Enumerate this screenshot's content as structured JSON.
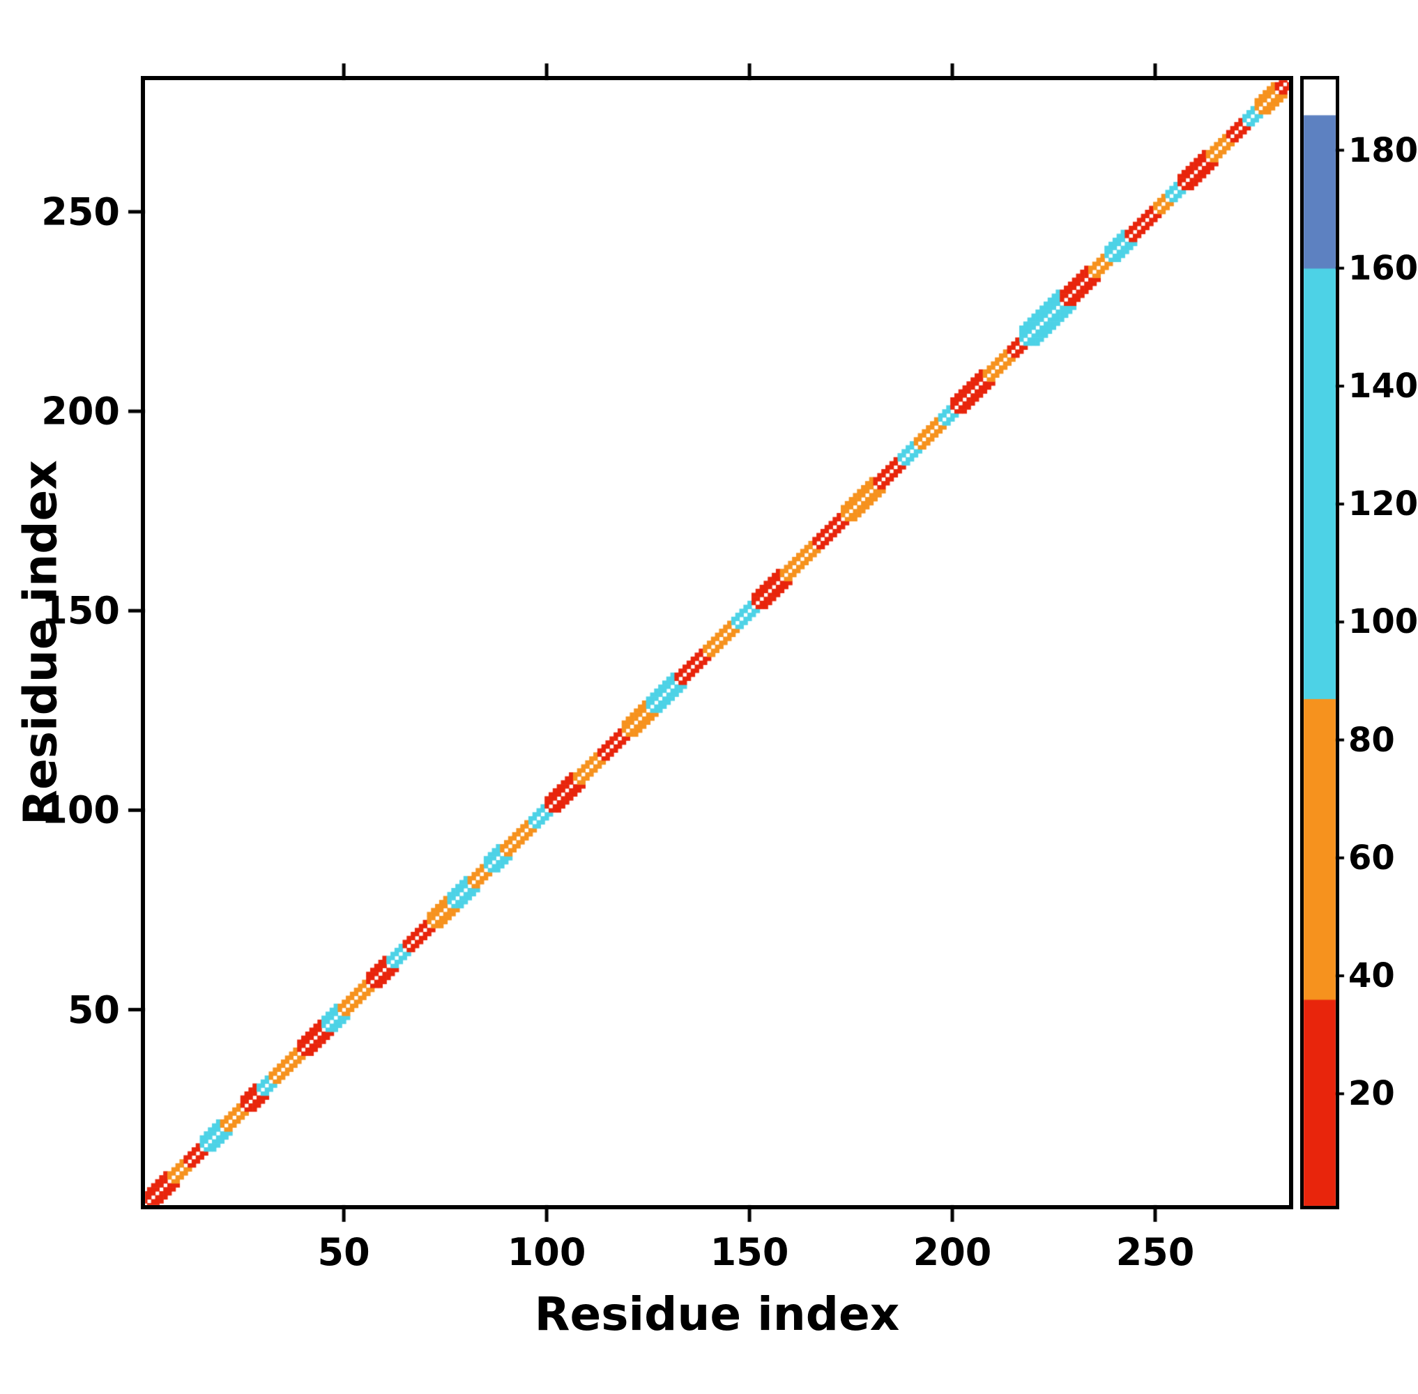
{
  "figure": {
    "background": "#ffffff"
  },
  "chart_data": {
    "type": "heatmap",
    "title": "",
    "xlabel": "Residue index",
    "ylabel": "Residue index",
    "x_range": [
      1,
      283
    ],
    "y_range": [
      1,
      283
    ],
    "x_ticks": [
      50,
      100,
      150,
      200,
      250
    ],
    "y_ticks": [
      50,
      100,
      150,
      200,
      250
    ],
    "grid": false,
    "legend_position": "colorbar-right",
    "palette": {
      "red": "#e8250c",
      "orange": "#f6921e",
      "cyan": "#4dd2e6",
      "blue": "#5d81c1",
      "white": "#ffffff"
    },
    "colorbar": {
      "range": [
        1,
        192
      ],
      "ticks": [
        20,
        40,
        60,
        80,
        100,
        120,
        140,
        160,
        180
      ],
      "stops": [
        {
          "from": 1,
          "to": 36,
          "color": "red"
        },
        {
          "from": 36,
          "to": 87,
          "color": "orange"
        },
        {
          "from": 87,
          "to": 160,
          "color": "cyan"
        },
        {
          "from": 160,
          "to": 186,
          "color": "blue"
        },
        {
          "from": 186,
          "to": 192,
          "color": "white"
        }
      ]
    },
    "diagonal": {
      "note": "residue-residue contacts occur only near the main diagonal; exact diagonal cells (i,i) are empty leaving a white center line; w = half-band thickness in residues",
      "excluded_offsets": [
        0
      ],
      "segments": [
        {
          "from": 1,
          "to": 6,
          "color": "red",
          "w": 3
        },
        {
          "from": 7,
          "to": 10,
          "color": "orange",
          "w": 2
        },
        {
          "from": 11,
          "to": 14,
          "color": "red",
          "w": 2
        },
        {
          "from": 15,
          "to": 19,
          "color": "cyan",
          "w": 3
        },
        {
          "from": 20,
          "to": 24,
          "color": "orange",
          "w": 2
        },
        {
          "from": 25,
          "to": 28,
          "color": "red",
          "w": 3
        },
        {
          "from": 29,
          "to": 31,
          "color": "cyan",
          "w": 2
        },
        {
          "from": 32,
          "to": 38,
          "color": "orange",
          "w": 2
        },
        {
          "from": 39,
          "to": 44,
          "color": "red",
          "w": 3
        },
        {
          "from": 45,
          "to": 48,
          "color": "cyan",
          "w": 3
        },
        {
          "from": 49,
          "to": 55,
          "color": "orange",
          "w": 2
        },
        {
          "from": 56,
          "to": 60,
          "color": "red",
          "w": 3
        },
        {
          "from": 61,
          "to": 64,
          "color": "cyan",
          "w": 2
        },
        {
          "from": 65,
          "to": 70,
          "color": "red",
          "w": 2
        },
        {
          "from": 71,
          "to": 75,
          "color": "orange",
          "w": 3
        },
        {
          "from": 76,
          "to": 80,
          "color": "cyan",
          "w": 3
        },
        {
          "from": 81,
          "to": 84,
          "color": "orange",
          "w": 2
        },
        {
          "from": 85,
          "to": 88,
          "color": "cyan",
          "w": 3
        },
        {
          "from": 89,
          "to": 95,
          "color": "orange",
          "w": 2
        },
        {
          "from": 96,
          "to": 99,
          "color": "cyan",
          "w": 2
        },
        {
          "from": 100,
          "to": 106,
          "color": "red",
          "w": 3
        },
        {
          "from": 107,
          "to": 112,
          "color": "orange",
          "w": 2
        },
        {
          "from": 113,
          "to": 118,
          "color": "red",
          "w": 2
        },
        {
          "from": 119,
          "to": 124,
          "color": "orange",
          "w": 3
        },
        {
          "from": 125,
          "to": 131,
          "color": "cyan",
          "w": 3
        },
        {
          "from": 132,
          "to": 138,
          "color": "red",
          "w": 2
        },
        {
          "from": 139,
          "to": 145,
          "color": "orange",
          "w": 2
        },
        {
          "from": 146,
          "to": 150,
          "color": "cyan",
          "w": 2
        },
        {
          "from": 151,
          "to": 157,
          "color": "red",
          "w": 3
        },
        {
          "from": 158,
          "to": 165,
          "color": "orange",
          "w": 2
        },
        {
          "from": 166,
          "to": 172,
          "color": "red",
          "w": 2
        },
        {
          "from": 173,
          "to": 180,
          "color": "orange",
          "w": 3
        },
        {
          "from": 181,
          "to": 186,
          "color": "red",
          "w": 2
        },
        {
          "from": 187,
          "to": 190,
          "color": "cyan",
          "w": 2
        },
        {
          "from": 191,
          "to": 196,
          "color": "orange",
          "w": 2
        },
        {
          "from": 197,
          "to": 199,
          "color": "cyan",
          "w": 2
        },
        {
          "from": 200,
          "to": 207,
          "color": "red",
          "w": 3
        },
        {
          "from": 208,
          "to": 213,
          "color": "orange",
          "w": 2
        },
        {
          "from": 214,
          "to": 216,
          "color": "red",
          "w": 2
        },
        {
          "from": 217,
          "to": 226,
          "color": "cyan",
          "w": 4
        },
        {
          "from": 227,
          "to": 233,
          "color": "red",
          "w": 3
        },
        {
          "from": 234,
          "to": 237,
          "color": "orange",
          "w": 2
        },
        {
          "from": 238,
          "to": 242,
          "color": "cyan",
          "w": 3
        },
        {
          "from": 243,
          "to": 249,
          "color": "red",
          "w": 2
        },
        {
          "from": 250,
          "to": 252,
          "color": "orange",
          "w": 2
        },
        {
          "from": 253,
          "to": 255,
          "color": "cyan",
          "w": 2
        },
        {
          "from": 256,
          "to": 262,
          "color": "red",
          "w": 3
        },
        {
          "from": 263,
          "to": 267,
          "color": "orange",
          "w": 2
        },
        {
          "from": 268,
          "to": 271,
          "color": "red",
          "w": 2
        },
        {
          "from": 272,
          "to": 274,
          "color": "cyan",
          "w": 2
        },
        {
          "from": 275,
          "to": 279,
          "color": "orange",
          "w": 3
        },
        {
          "from": 280,
          "to": 283,
          "color": "red",
          "w": 2
        }
      ]
    }
  }
}
